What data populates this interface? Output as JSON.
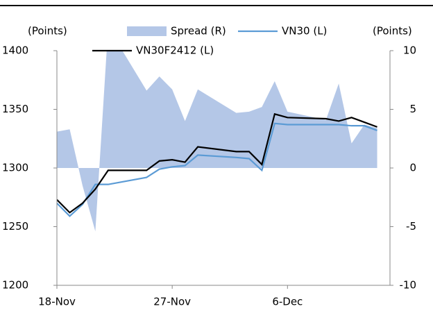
{
  "chart_data": {
    "type": "line",
    "y_label": "(Points)",
    "y2_label": "(Points)",
    "x": [
      "18-Nov",
      "19-Nov",
      "20-Nov",
      "21-Nov",
      "22-Nov",
      "25-Nov",
      "26-Nov",
      "27-Nov",
      "28-Nov",
      "29-Nov",
      "2-Dec",
      "3-Dec",
      "4-Dec",
      "5-Dec",
      "6-Dec",
      "9-Dec",
      "10-Dec",
      "11-Dec",
      "12-Dec",
      "13-Dec"
    ],
    "xlim": [
      "18-Nov",
      "14-Dec"
    ],
    "xticks": [
      "18-Nov",
      "27-Nov",
      "6-Dec"
    ],
    "ylim": [
      1200,
      1400
    ],
    "yticks": [
      1200,
      1250,
      1300,
      1350,
      1400
    ],
    "y2lim": [
      -10,
      10
    ],
    "y2ticks": [
      -10,
      -5,
      0,
      5,
      10
    ],
    "series": [
      {
        "name": "Spread (R)",
        "type": "area",
        "axis": "y2",
        "color": "#b4c7e7",
        "values": [
          3.1,
          3.3,
          -1.5,
          -5.4,
          12,
          6.6,
          7.8,
          6.7,
          4.0,
          6.7,
          4.7,
          4.8,
          5.2,
          7.4,
          4.8,
          4.1,
          7.2,
          2.1,
          3.7,
          3.4
        ]
      },
      {
        "name": "VN30 (L)",
        "type": "line",
        "color": "#5b9bd5",
        "values": [
          1270,
          1259,
          1269,
          1286,
          1286,
          1292,
          1299,
          1301,
          1302,
          1311,
          1309,
          1308,
          1298,
          1338,
          1337,
          1337,
          1337,
          1336,
          1336,
          1332
        ]
      },
      {
        "name": "VN30F2412 (L)",
        "type": "line",
        "color": "#000000",
        "values": [
          1273,
          1262,
          1270,
          1282,
          1298,
          1298,
          1306,
          1307,
          1305,
          1318,
          1314,
          1314,
          1303,
          1346,
          1343,
          1342,
          1340,
          1343,
          1339,
          1335
        ]
      }
    ]
  }
}
